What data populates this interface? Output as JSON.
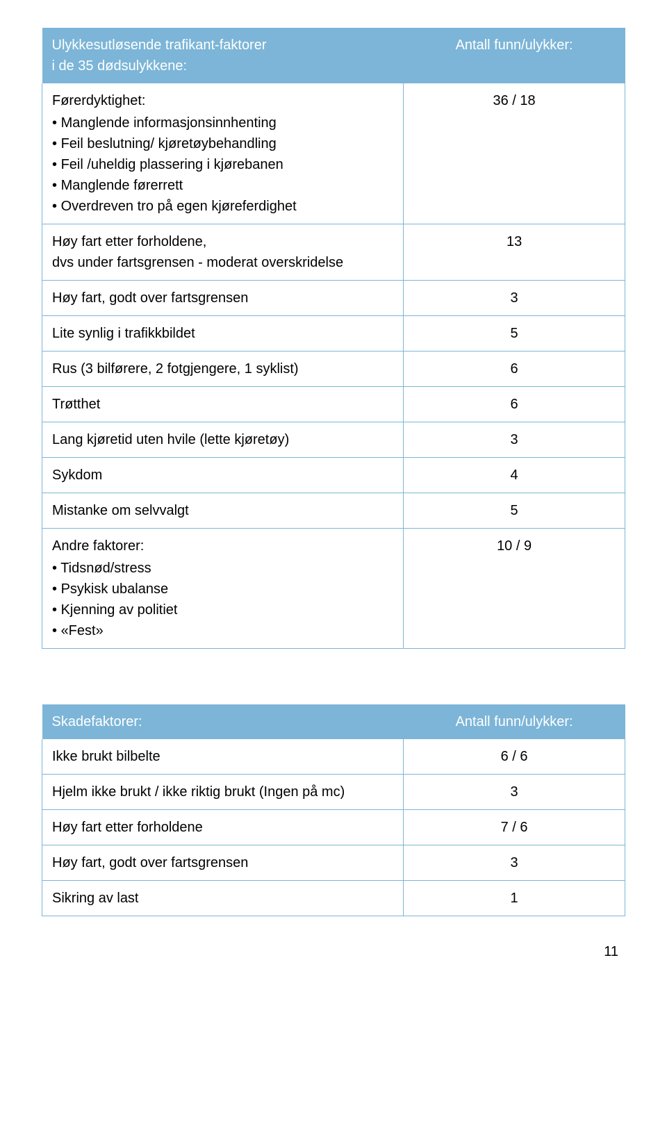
{
  "table1": {
    "header_left_line1": "Ulykkesutløsende trafikant-faktorer",
    "header_left_line2": "i de 35 dødsulykkene:",
    "header_right": "Antall funn/ulykker:",
    "rows": [
      {
        "label": "Førerdyktighet:",
        "bullets": [
          "Manglende informasjonsinnhenting",
          "Feil beslutning/ kjøretøybehandling",
          "Feil /uheldig plassering i kjørebanen",
          "Manglende førerrett",
          "Overdreven tro på egen kjøreferdighet"
        ],
        "value": "36 / 18"
      },
      {
        "label": "Høy fart etter forholdene,",
        "sublabel": "dvs under fartsgrensen - moderat overskridelse",
        "value": "13"
      },
      {
        "label": "Høy fart, godt over fartsgrensen",
        "value": "3"
      },
      {
        "label": "Lite synlig i trafikkbildet",
        "value": "5"
      },
      {
        "label": "Rus (3 bilførere, 2 fotgjengere, 1 syklist)",
        "value": "6"
      },
      {
        "label": "Trøtthet",
        "value": "6"
      },
      {
        "label": "Lang kjøretid uten hvile (lette kjøretøy)",
        "value": "3"
      },
      {
        "label": "Sykdom",
        "value": "4"
      },
      {
        "label": "Mistanke om selvvalgt",
        "value": "5"
      },
      {
        "label": "Andre faktorer:",
        "bullets": [
          "Tidsnød/stress",
          "Psykisk ubalanse",
          "Kjenning av politiet",
          "«Fest»"
        ],
        "value": "10 / 9"
      }
    ]
  },
  "table2": {
    "header_left": "Skadefaktorer:",
    "header_right": "Antall funn/ulykker:",
    "rows": [
      {
        "label": "Ikke brukt bilbelte",
        "value": "6 / 6"
      },
      {
        "label": "Hjelm ikke brukt / ikke riktig brukt (Ingen på mc)",
        "value": "3"
      },
      {
        "label": "Høy fart etter forholdene",
        "value": "7 / 6"
      },
      {
        "label": "Høy fart, godt over fartsgrensen",
        "value": "3"
      },
      {
        "label": "Sikring av last",
        "value": "1"
      }
    ]
  },
  "page_number": "11",
  "colors": {
    "header_bg": "#7cb5d7",
    "header_text": "#ffffff",
    "border": "#7cb5d7",
    "body_text": "#000000"
  }
}
